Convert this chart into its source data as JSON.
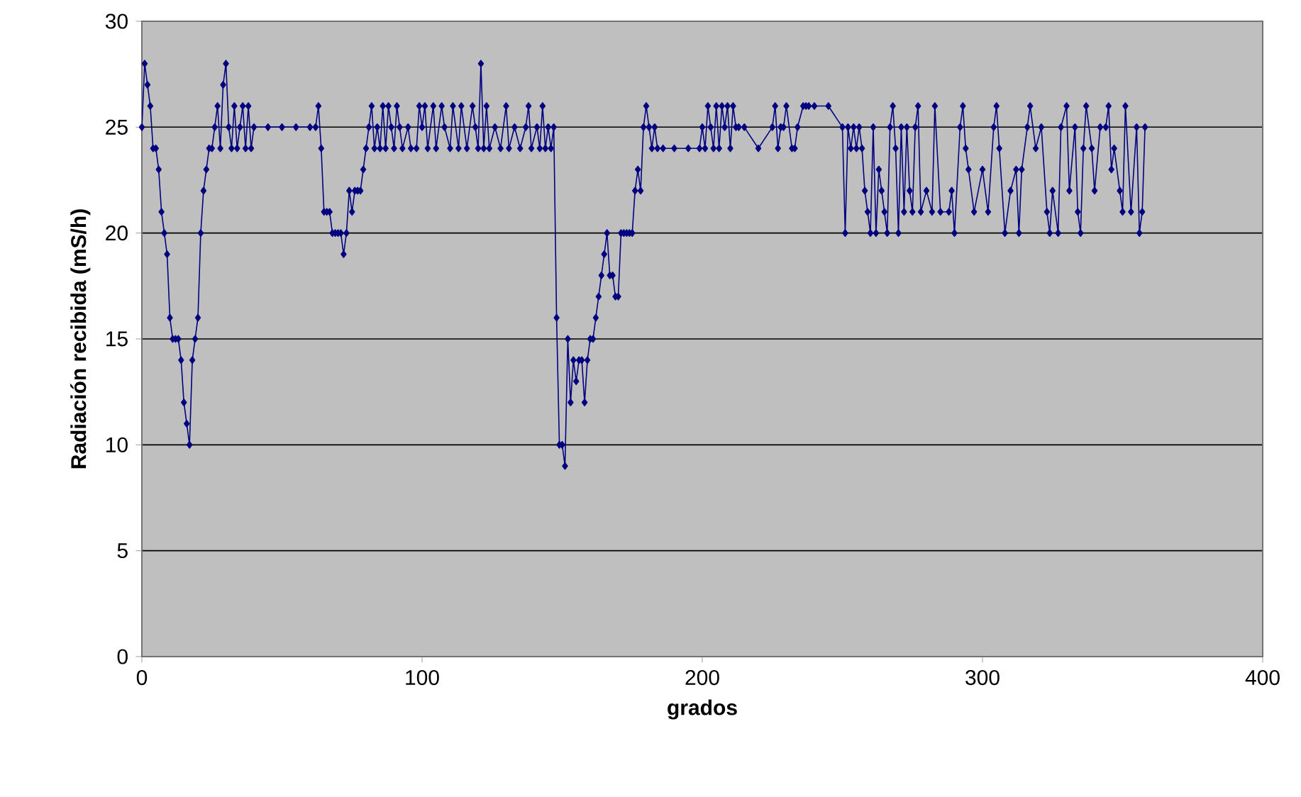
{
  "chart_data": {
    "type": "line",
    "xlabel": "grados",
    "ylabel": "Radiación recibida (mS/h)",
    "x": [
      0,
      1,
      2,
      3,
      4,
      5,
      6,
      7,
      8,
      9,
      10,
      11,
      12,
      13,
      14,
      15,
      16,
      17,
      18,
      19,
      20,
      21,
      22,
      23,
      24,
      25,
      26,
      27,
      28,
      29,
      30,
      31,
      32,
      33,
      34,
      35,
      36,
      37,
      38,
      39,
      40,
      45,
      50,
      55,
      60,
      62,
      63,
      64,
      65,
      66,
      67,
      68,
      69,
      70,
      71,
      72,
      73,
      74,
      75,
      76,
      77,
      78,
      79,
      80,
      81,
      82,
      83,
      84,
      85,
      86,
      87,
      88,
      89,
      90,
      91,
      92,
      93,
      95,
      96,
      98,
      99,
      100,
      101,
      102,
      104,
      105,
      107,
      108,
      110,
      111,
      113,
      114,
      116,
      118,
      119,
      120,
      121,
      122,
      123,
      124,
      126,
      128,
      130,
      131,
      133,
      135,
      137,
      138,
      139,
      141,
      142,
      143,
      144,
      145,
      146,
      147,
      148,
      149,
      150,
      151,
      152,
      153,
      154,
      155,
      156,
      157,
      158,
      159,
      160,
      161,
      162,
      163,
      164,
      165,
      166,
      167,
      168,
      169,
      170,
      171,
      172,
      173,
      174,
      175,
      176,
      177,
      178,
      179,
      180,
      181,
      182,
      183,
      184,
      186,
      190,
      195,
      199,
      200,
      201,
      202,
      203,
      204,
      205,
      206,
      207,
      208,
      209,
      210,
      211,
      212,
      213,
      215,
      220,
      225,
      226,
      227,
      228,
      229,
      230,
      232,
      233,
      234,
      236,
      237,
      238,
      240,
      245,
      250,
      251,
      252,
      253,
      254,
      255,
      256,
      257,
      258,
      259,
      260,
      261,
      262,
      263,
      264,
      265,
      266,
      267,
      268,
      269,
      270,
      271,
      272,
      273,
      274,
      275,
      276,
      277,
      278,
      280,
      282,
      283,
      285,
      288,
      289,
      290,
      292,
      293,
      294,
      295,
      297,
      300,
      302,
      304,
      305,
      306,
      308,
      310,
      312,
      313,
      314,
      316,
      317,
      319,
      321,
      323,
      324,
      325,
      327,
      328,
      330,
      331,
      333,
      334,
      335,
      336,
      337,
      339,
      340,
      342,
      344,
      345,
      346,
      347,
      349,
      350,
      351,
      353,
      355,
      356,
      357,
      358
    ],
    "values": [
      25,
      28,
      27,
      26,
      24,
      24,
      23,
      21,
      20,
      19,
      16,
      15,
      15,
      15,
      14,
      12,
      11,
      10,
      14,
      15,
      16,
      20,
      22,
      23,
      24,
      24,
      25,
      26,
      24,
      27,
      28,
      25,
      24,
      26,
      24,
      25,
      26,
      24,
      26,
      24,
      25,
      25,
      25,
      25,
      25,
      25,
      26,
      24,
      21,
      21,
      21,
      20,
      20,
      20,
      20,
      19,
      20,
      22,
      21,
      22,
      22,
      22,
      23,
      24,
      25,
      26,
      24,
      25,
      24,
      26,
      24,
      26,
      25,
      24,
      26,
      25,
      24,
      25,
      24,
      24,
      26,
      25,
      26,
      24,
      26,
      24,
      26,
      25,
      24,
      26,
      24,
      26,
      24,
      26,
      25,
      24,
      28,
      24,
      26,
      24,
      25,
      24,
      26,
      24,
      25,
      24,
      25,
      26,
      24,
      25,
      24,
      26,
      24,
      25,
      24,
      25,
      16,
      10,
      10,
      9,
      15,
      12,
      14,
      13,
      14,
      14,
      12,
      14,
      15,
      15,
      16,
      17,
      18,
      19,
      20,
      18,
      18,
      17,
      17,
      20,
      20,
      20,
      20,
      20,
      22,
      23,
      22,
      25,
      26,
      25,
      24,
      25,
      24,
      24,
      24,
      24,
      24,
      25,
      24,
      26,
      25,
      24,
      26,
      24,
      26,
      25,
      26,
      24,
      26,
      25,
      25,
      25,
      24,
      25,
      26,
      24,
      25,
      25,
      26,
      24,
      24,
      25,
      26,
      26,
      26,
      26,
      26,
      25,
      20,
      25,
      24,
      25,
      24,
      25,
      24,
      22,
      21,
      20,
      25,
      20,
      23,
      22,
      21,
      20,
      25,
      26,
      24,
      20,
      25,
      21,
      25,
      22,
      21,
      25,
      26,
      21,
      22,
      21,
      26,
      21,
      21,
      22,
      20,
      25,
      26,
      24,
      23,
      21,
      23,
      21,
      25,
      26,
      24,
      20,
      22,
      23,
      20,
      23,
      25,
      26,
      24,
      25,
      21,
      20,
      22,
      20,
      25,
      26,
      22,
      25,
      21,
      20,
      24,
      26,
      24,
      22,
      25,
      25,
      26,
      23,
      24,
      22,
      21,
      26,
      21,
      25,
      20,
      21,
      25
    ],
    "color": "#000080",
    "marker": "diamond",
    "line_style": "solid",
    "xlim": [
      0,
      400
    ],
    "ylim": [
      0,
      30
    ],
    "xticks": [
      0,
      100,
      200,
      300,
      400
    ],
    "yticks": [
      0,
      5,
      10,
      15,
      20,
      25,
      30
    ],
    "grid": "y"
  }
}
